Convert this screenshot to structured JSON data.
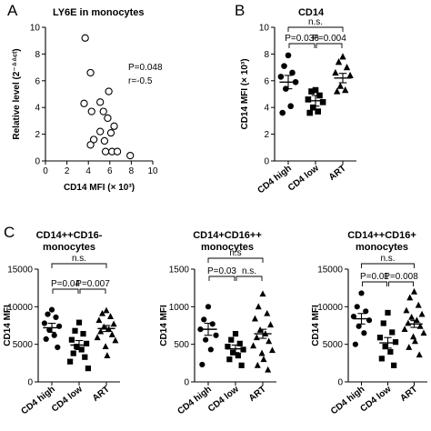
{
  "figure": {
    "panel_labels": [
      "A",
      "B",
      "C"
    ]
  },
  "chart_data": [
    {
      "panel": "A",
      "type": "scatter",
      "title": "LY6E in monocytes",
      "xlabel": "CD14 MFI (× 10³)",
      "ylabel": "Relative level (2⁻ᐞᐞᶜᵗ)",
      "xlim": [
        0,
        10
      ],
      "ylim": [
        0,
        10
      ],
      "xticks": [
        0,
        2,
        4,
        6,
        8,
        10
      ],
      "yticks": [
        0,
        2,
        4,
        6,
        8,
        10
      ],
      "marker": "open-circle",
      "annotations": [
        "P=0.048",
        "r=-0.5"
      ],
      "points": [
        {
          "x": 3.7,
          "y": 9.2
        },
        {
          "x": 4.2,
          "y": 6.6
        },
        {
          "x": 5.9,
          "y": 5.2
        },
        {
          "x": 3.6,
          "y": 4.3
        },
        {
          "x": 5.1,
          "y": 4.4
        },
        {
          "x": 4.3,
          "y": 3.7
        },
        {
          "x": 5.4,
          "y": 3.7
        },
        {
          "x": 5.8,
          "y": 3.2
        },
        {
          "x": 6.4,
          "y": 2.6
        },
        {
          "x": 5.1,
          "y": 2.2
        },
        {
          "x": 6.1,
          "y": 2.1
        },
        {
          "x": 4.5,
          "y": 1.6
        },
        {
          "x": 5.5,
          "y": 1.5
        },
        {
          "x": 4.2,
          "y": 1.2
        },
        {
          "x": 5.6,
          "y": 0.7
        },
        {
          "x": 6.2,
          "y": 0.7
        },
        {
          "x": 6.7,
          "y": 0.7
        },
        {
          "x": 7.9,
          "y": 0.4
        }
      ]
    },
    {
      "panel": "B",
      "type": "scatter",
      "title": "CD14",
      "ylabel": "CD14 MFI (× 10³)",
      "ylim": [
        0,
        10
      ],
      "yticks": [
        0,
        2,
        4,
        6,
        8,
        10
      ],
      "categories": [
        "CD4 high",
        "CD4 low",
        "ART"
      ],
      "markers": [
        "circle",
        "square",
        "triangle"
      ],
      "groups": [
        {
          "name": "CD4 high",
          "mean": 5.9,
          "sem": 0.5,
          "values": [
            7.9,
            7.1,
            6.6,
            6.3,
            5.9,
            5.4,
            4.1,
            3.6
          ]
        },
        {
          "name": "CD4 low",
          "mean": 4.5,
          "sem": 0.4,
          "values": [
            5.3,
            5.2,
            4.9,
            4.6,
            4.4,
            4.0,
            3.7,
            3.6
          ]
        },
        {
          "name": "ART",
          "mean": 6.2,
          "sem": 0.35,
          "values": [
            7.8,
            7.4,
            7.0,
            6.6,
            6.4,
            5.6,
            5.3,
            5.2
          ]
        }
      ],
      "brackets": [
        {
          "from": "CD4 high",
          "to": "ART",
          "label": "n.s."
        },
        {
          "from": "CD4 high",
          "to": "CD4 low",
          "label": "P=0.036"
        },
        {
          "from": "CD4 low",
          "to": "ART",
          "label": "P=0.004"
        }
      ]
    },
    {
      "panel": "C",
      "type": "scatter",
      "title": [
        "CD14++CD16-",
        "monocytes"
      ],
      "ylabel": "CD14 MFI",
      "ylim": [
        0,
        15000
      ],
      "yticks": [
        0,
        5000,
        10000,
        15000
      ],
      "categories": [
        "CD4 high",
        "CD4 low",
        "ART"
      ],
      "markers": [
        "circle",
        "square",
        "triangle"
      ],
      "groups": [
        {
          "name": "CD4 high",
          "mean": 7200,
          "sem": 600,
          "values": [
            9600,
            9000,
            8600,
            7800,
            7400,
            6900,
            6200,
            5700,
            4600
          ]
        },
        {
          "name": "CD4 low",
          "mean": 4900,
          "sem": 600,
          "values": [
            7900,
            6800,
            6400,
            5600,
            5100,
            4700,
            4300,
            3800,
            3300,
            2700,
            1800
          ]
        },
        {
          "name": "ART",
          "mean": 7100,
          "sem": 400,
          "values": [
            9500,
            9100,
            8700,
            8200,
            7700,
            7300,
            7000,
            6700,
            6300,
            5900,
            5500,
            4700,
            3500
          ]
        }
      ],
      "brackets": [
        {
          "from": "CD4 high",
          "to": "ART",
          "label": "n.s."
        },
        {
          "from": "CD4 high",
          "to": "CD4 low",
          "label": "P=0.04"
        },
        {
          "from": "CD4 low",
          "to": "ART",
          "label": "P=0.007"
        }
      ]
    },
    {
      "panel": "C",
      "type": "scatter",
      "title": [
        "CD14+CD16++",
        "monocytes"
      ],
      "ylabel": "CD14 MFI",
      "ylim": [
        0,
        1500
      ],
      "yticks": [
        0,
        500,
        1000,
        1500
      ],
      "categories": [
        "CD4 high",
        "CD4 low",
        "ART"
      ],
      "markers": [
        "circle",
        "square",
        "triangle"
      ],
      "groups": [
        {
          "name": "CD4 high",
          "mean": 700,
          "sem": 80,
          "values": [
            1000,
            830,
            770,
            700,
            620,
            560,
            430,
            230
          ]
        },
        {
          "name": "CD4 low",
          "mean": 440,
          "sem": 50,
          "values": [
            640,
            560,
            510,
            470,
            430,
            390,
            350,
            300,
            220
          ]
        },
        {
          "name": "ART",
          "mean": 640,
          "sem": 60,
          "values": [
            1170,
            1000,
            910,
            840,
            760,
            690,
            640,
            590,
            540,
            480,
            420,
            380,
            300,
            220,
            160
          ]
        }
      ],
      "brackets": [
        {
          "from": "CD4 high",
          "to": "ART",
          "label": "n.s"
        },
        {
          "from": "CD4 high",
          "to": "CD4 low",
          "label": "P=0.03"
        },
        {
          "from": "CD4 low",
          "to": "ART",
          "label": "n.s."
        }
      ]
    },
    {
      "panel": "C",
      "type": "scatter",
      "title": [
        "CD14++CD16+",
        "monocytes"
      ],
      "ylabel": "CD14 MFI",
      "ylim": [
        0,
        15000
      ],
      "yticks": [
        0,
        5000,
        10000,
        15000
      ],
      "categories": [
        "CD4 high",
        "CD4 low",
        "ART"
      ],
      "markers": [
        "circle",
        "square",
        "triangle"
      ],
      "groups": [
        {
          "name": "CD4 high",
          "mean": 8400,
          "sem": 700,
          "values": [
            11800,
            10000,
            9400,
            8700,
            8200,
            7400,
            6500,
            5000
          ]
        },
        {
          "name": "CD4 low",
          "mean": 5200,
          "sem": 700,
          "values": [
            9200,
            7800,
            6600,
            5900,
            5300,
            4700,
            4000,
            3100,
            2200
          ]
        },
        {
          "name": "ART",
          "mean": 7700,
          "sem": 450,
          "values": [
            12000,
            11200,
            10200,
            9500,
            9000,
            8600,
            8200,
            7800,
            7400,
            7000,
            6500,
            6000,
            5400,
            4600,
            3600
          ]
        }
      ],
      "brackets": [
        {
          "from": "CD4 high",
          "to": "ART",
          "label": "n.s."
        },
        {
          "from": "CD4 high",
          "to": "CD4 low",
          "label": "P=0.01"
        },
        {
          "from": "CD4 low",
          "to": "ART",
          "label": "P=0.008"
        }
      ]
    }
  ]
}
